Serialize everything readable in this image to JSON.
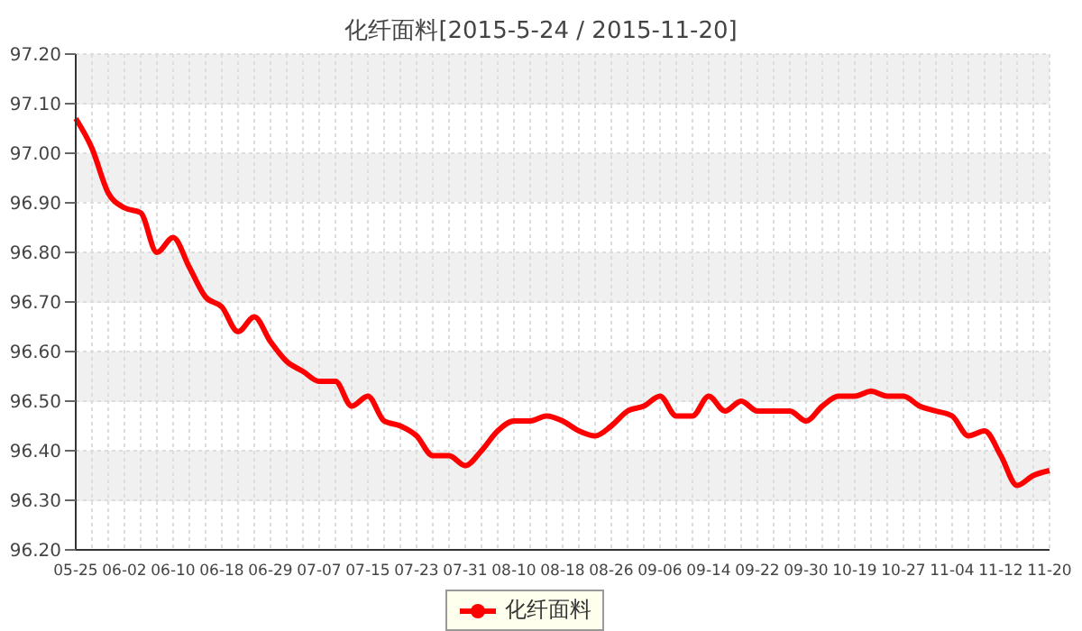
{
  "chart_data": {
    "type": "line",
    "title": "化纤面料[2015-5-24 / 2015-11-20]",
    "categories": [
      "05-25",
      null,
      null,
      "06-02",
      null,
      null,
      "06-10",
      null,
      null,
      "06-18",
      null,
      null,
      "06-29",
      null,
      null,
      "07-07",
      null,
      null,
      "07-15",
      null,
      null,
      "07-23",
      null,
      null,
      "07-31",
      null,
      null,
      "08-10",
      null,
      null,
      "08-18",
      null,
      null,
      "08-26",
      null,
      null,
      "09-06",
      null,
      null,
      "09-14",
      null,
      null,
      "09-22",
      null,
      null,
      "09-30",
      null,
      null,
      "10-19",
      null,
      null,
      "10-27",
      null,
      null,
      "11-04",
      null,
      null,
      "11-12",
      null,
      null,
      "11-20"
    ],
    "series": [
      {
        "name": "化纤面料",
        "color": "#ff0000",
        "values": [
          97.07,
          97.01,
          96.92,
          96.89,
          96.88,
          96.8,
          96.83,
          96.77,
          96.71,
          96.69,
          96.64,
          96.67,
          96.62,
          96.58,
          96.56,
          96.54,
          96.54,
          96.49,
          96.51,
          96.46,
          96.45,
          96.43,
          96.39,
          96.39,
          96.37,
          96.4,
          96.44,
          96.46,
          96.46,
          96.47,
          96.46,
          96.44,
          96.43,
          96.45,
          96.48,
          96.49,
          96.51,
          96.47,
          96.47,
          96.51,
          96.48,
          96.5,
          96.48,
          96.48,
          96.48,
          96.46,
          96.49,
          96.51,
          96.51,
          96.52,
          96.51,
          96.51,
          96.49,
          96.48,
          96.47,
          96.43,
          96.44,
          96.39,
          96.33,
          96.35,
          96.36
        ]
      }
    ],
    "ylim": [
      96.2,
      97.2
    ],
    "yticks": [
      {
        "value": 96.2,
        "label": "96.20"
      },
      {
        "value": 96.3,
        "label": "96.30"
      },
      {
        "value": 96.4,
        "label": "96.40"
      },
      {
        "value": 96.5,
        "label": "96.50"
      },
      {
        "value": 96.6,
        "label": "96.60"
      },
      {
        "value": 96.7,
        "label": "96.70"
      },
      {
        "value": 96.8,
        "label": "96.80"
      },
      {
        "value": 96.9,
        "label": "96.90"
      },
      {
        "value": 97.0,
        "label": "97.00"
      },
      {
        "value": 97.1,
        "label": "97.10"
      },
      {
        "value": 97.2,
        "label": "97.20"
      }
    ],
    "grid": true,
    "legend": "bottom",
    "marker": "none",
    "line_style": "solid"
  }
}
